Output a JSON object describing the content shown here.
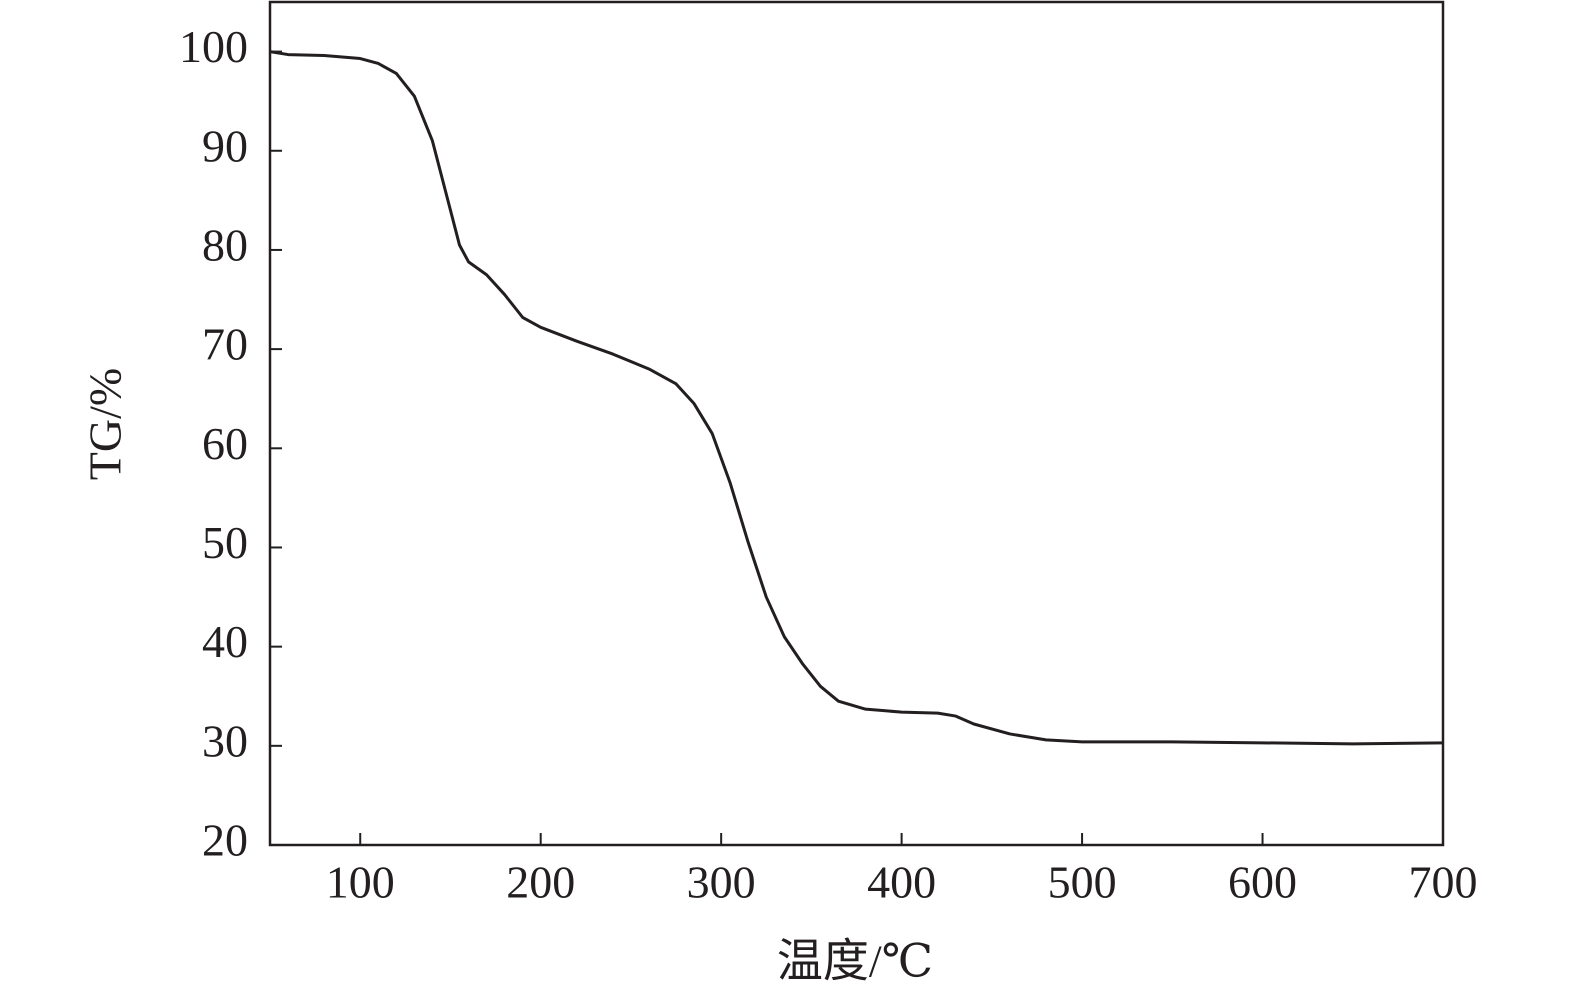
{
  "chart_data": {
    "type": "line",
    "x_label": "温度/℃",
    "y_label": "TG/%",
    "x": [
      50,
      60,
      80,
      100,
      110,
      120,
      130,
      140,
      150,
      155,
      160,
      170,
      180,
      190,
      200,
      220,
      240,
      260,
      275,
      285,
      295,
      305,
      315,
      325,
      335,
      345,
      355,
      365,
      380,
      400,
      420,
      430,
      440,
      460,
      480,
      500,
      550,
      600,
      650,
      700
    ],
    "values": [
      100,
      99.7,
      99.6,
      99.3,
      98.8,
      97.8,
      95.5,
      91,
      84,
      80.5,
      78.8,
      77.5,
      75.5,
      73.2,
      72.2,
      70.8,
      69.5,
      68,
      66.5,
      64.5,
      61.5,
      56.5,
      50.5,
      45,
      41,
      38.3,
      36,
      34.5,
      33.7,
      33.4,
      33.3,
      33,
      32.2,
      31.2,
      30.6,
      30.4,
      30.4,
      30.3,
      30.2,
      30.3
    ],
    "color": "#231f20",
    "xlim": [
      50,
      700
    ],
    "ylim": [
      20,
      105
    ],
    "xticks": [
      100,
      200,
      300,
      400,
      500,
      600,
      700
    ],
    "yticks": [
      20,
      30,
      40,
      50,
      60,
      70,
      80,
      90,
      100
    ]
  }
}
